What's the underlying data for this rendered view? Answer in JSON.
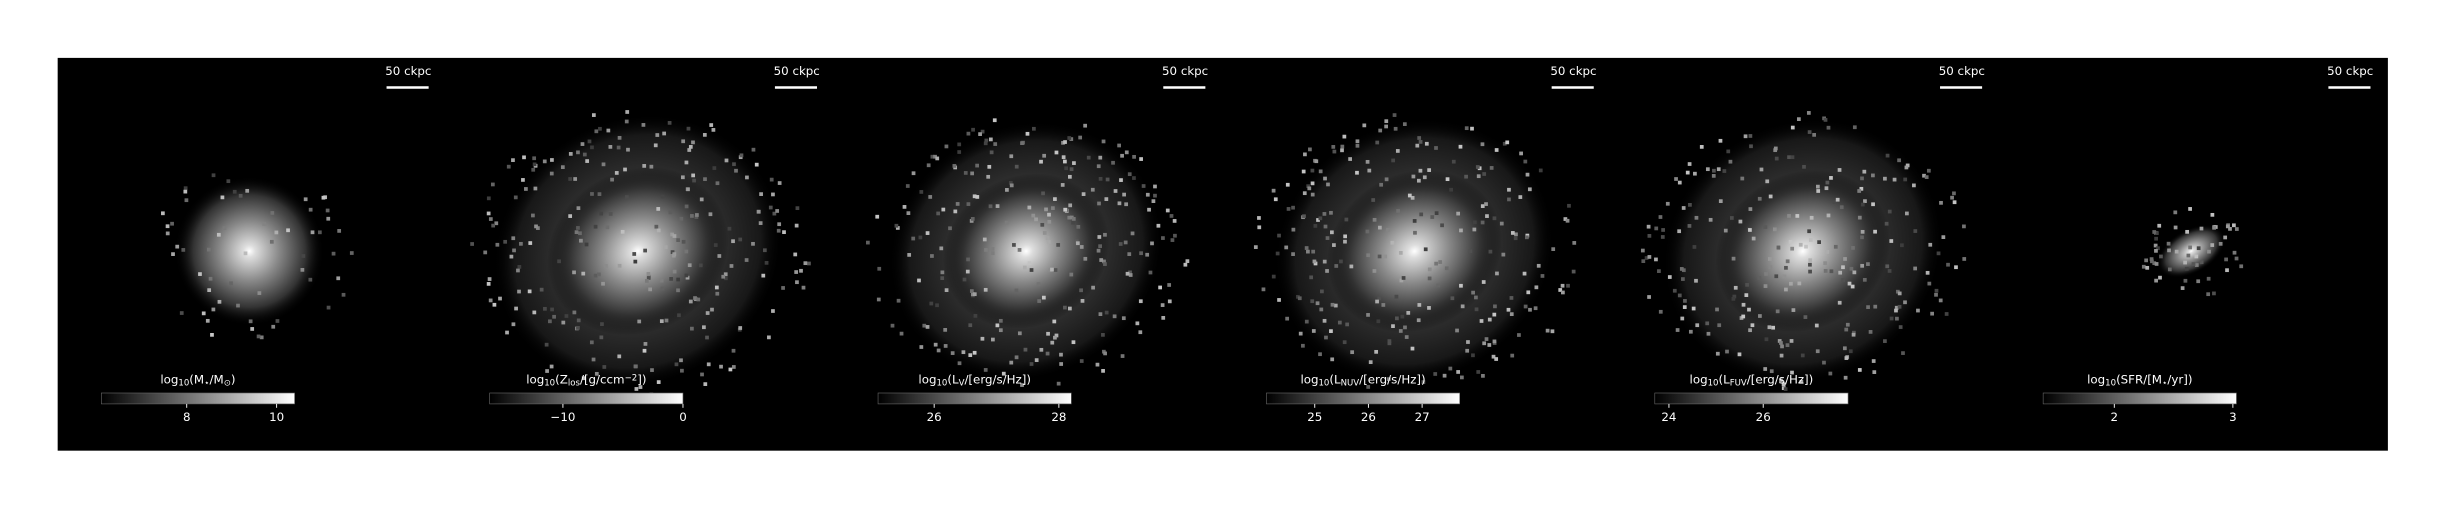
{
  "panels": [
    {
      "scale_label": "50 ckpc",
      "label": [
        {
          "text": "log"
        },
        {
          "text": "10",
          "sub": true
        },
        {
          "text": "(M"
        },
        {
          "text": "⋆",
          "sub": true
        },
        {
          "text": "/M"
        },
        {
          "text": "⊙",
          "sub": true
        },
        {
          "text": ")"
        }
      ],
      "clim": [
        6.1,
        10.4
      ],
      "ticks": [
        8,
        10
      ]
    },
    {
      "scale_label": "50 ckpc",
      "label": [
        {
          "text": "log"
        },
        {
          "text": "10",
          "sub": true
        },
        {
          "text": "(Z"
        },
        {
          "text": "los",
          "sub": true
        },
        {
          "text": "/[g/ccm"
        },
        {
          "text": "−2",
          "sup": true
        },
        {
          "text": "])"
        }
      ],
      "clim": [
        -16.1,
        0
      ],
      "ticks": [
        {
          "value": -10,
          "label": "−10"
        },
        0
      ]
    },
    {
      "scale_label": "50 ckpc",
      "label": [
        {
          "text": "log"
        },
        {
          "text": "10",
          "sub": true
        },
        {
          "text": "(L"
        },
        {
          "text": "V",
          "sub": true
        },
        {
          "text": "/[erg/s/Hz])"
        }
      ],
      "clim": [
        25.1,
        28.2
      ],
      "ticks": [
        26,
        28
      ]
    },
    {
      "scale_label": "50 ckpc",
      "label": [
        {
          "text": "log"
        },
        {
          "text": "10",
          "sub": true
        },
        {
          "text": "(L"
        },
        {
          "text": "NUV",
          "sub": true
        },
        {
          "text": "/[erg/s/Hz])"
        }
      ],
      "clim": [
        24.1,
        27.7
      ],
      "ticks": [
        25,
        26,
        27
      ]
    },
    {
      "scale_label": "50 ckpc",
      "label": [
        {
          "text": "log"
        },
        {
          "text": "10",
          "sub": true
        },
        {
          "text": "(L"
        },
        {
          "text": "FUV",
          "sub": true
        },
        {
          "text": "/[erg/s/Hz])"
        }
      ],
      "clim": [
        23.7,
        27.8
      ],
      "ticks": [
        24,
        26
      ]
    },
    {
      "scale_label": "50 ckpc",
      "label": [
        {
          "text": "log"
        },
        {
          "text": "10",
          "sub": true
        },
        {
          "text": "(SFR/[M"
        },
        {
          "text": "⋆",
          "sub": true
        },
        {
          "text": "/yr])"
        }
      ],
      "clim": [
        1.4,
        3.03
      ],
      "ticks": [
        2,
        3
      ]
    }
  ]
}
